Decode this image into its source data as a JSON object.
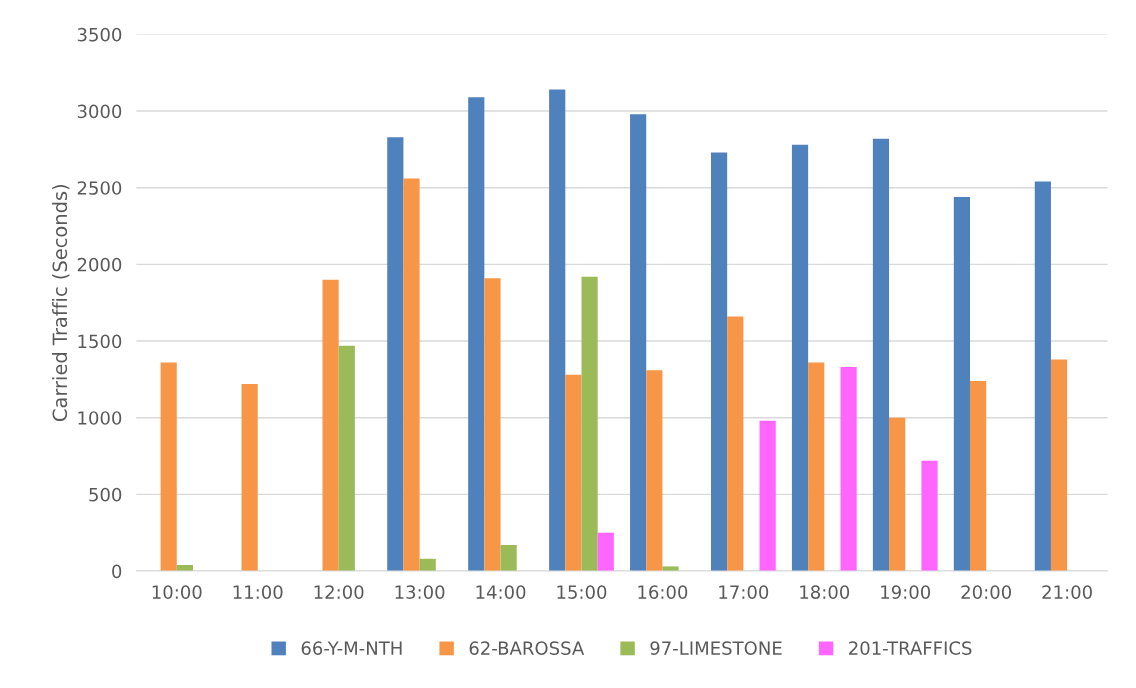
{
  "chart_data": {
    "type": "bar",
    "ylabel": "Carried Traffic (Seconds)",
    "categories": [
      "10:00",
      "11:00",
      "12:00",
      "13:00",
      "14:00",
      "15:00",
      "16:00",
      "17:00",
      "18:00",
      "19:00",
      "20:00",
      "21:00"
    ],
    "series": [
      {
        "name": "66-Y-M-NTH",
        "color": "#4f81bd",
        "values": [
          null,
          null,
          null,
          2830,
          3090,
          3140,
          2980,
          2730,
          2780,
          2820,
          2440,
          2540
        ]
      },
      {
        "name": "62-BAROSSA",
        "color": "#f79646",
        "values": [
          1360,
          1220,
          1900,
          2560,
          1910,
          1280,
          1310,
          1660,
          1360,
          1000,
          1240,
          1380
        ]
      },
      {
        "name": "97-LIMESTONE",
        "color": "#9bbb59",
        "values": [
          40,
          null,
          1470,
          80,
          170,
          1920,
          30,
          null,
          null,
          null,
          null,
          null
        ]
      },
      {
        "name": "201-TRAFFICS",
        "color": "#ff66ff",
        "values": [
          null,
          null,
          null,
          null,
          null,
          250,
          null,
          980,
          1330,
          720,
          null,
          null
        ]
      }
    ],
    "ylim": [
      0,
      3500
    ],
    "yticks": [
      0,
      500,
      1000,
      1500,
      2000,
      2500,
      3000,
      3500
    ],
    "grid": "y",
    "legend": "bottom"
  }
}
